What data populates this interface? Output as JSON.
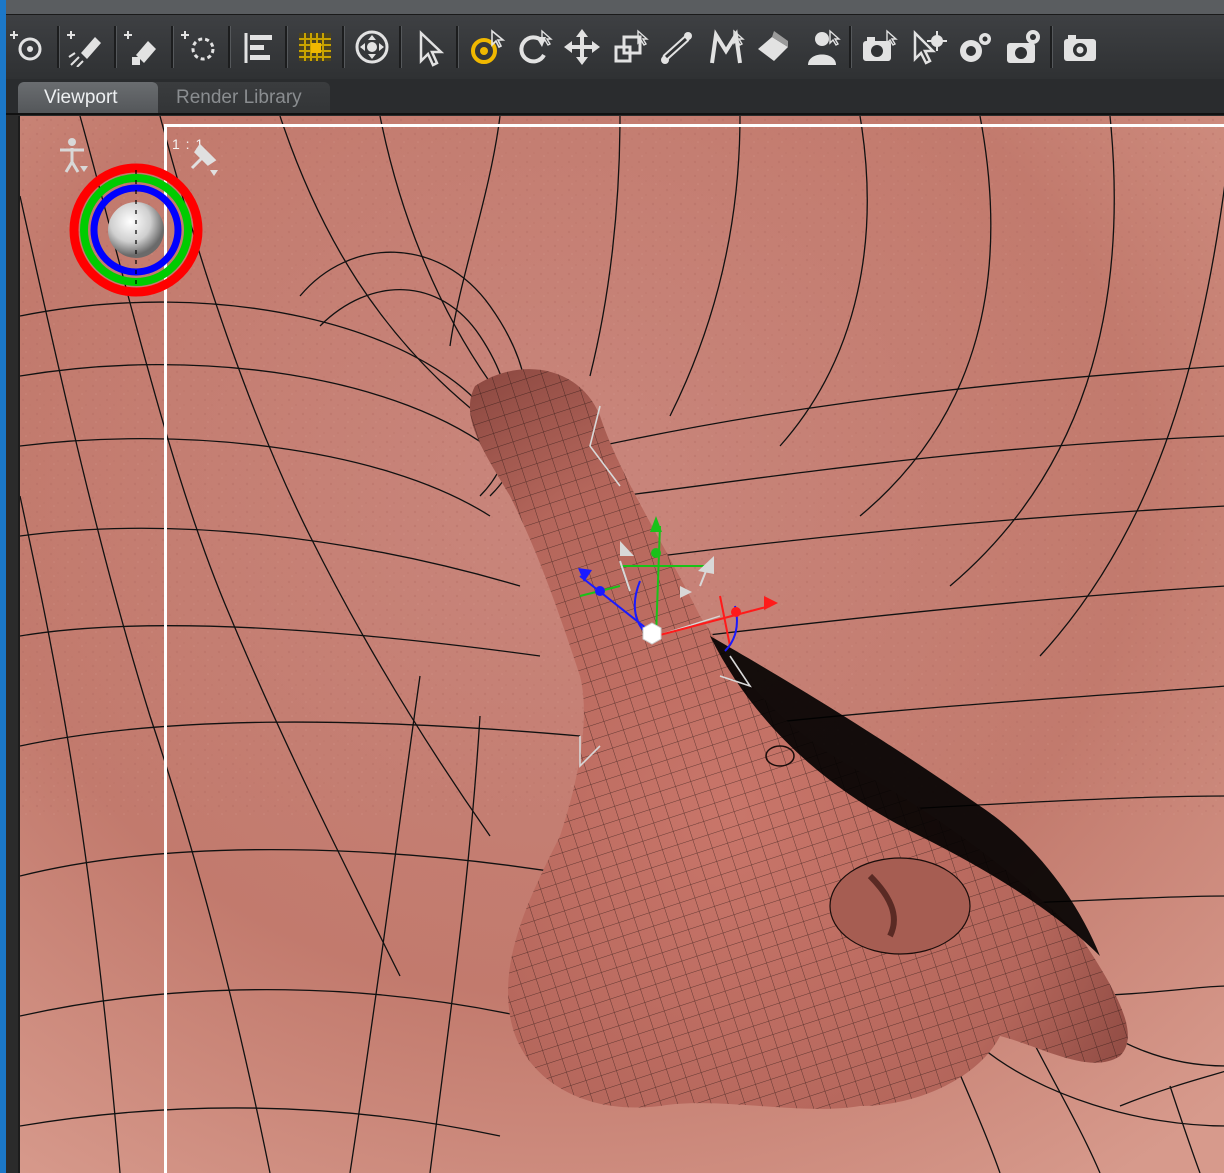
{
  "toolbar": {
    "tools": [
      {
        "name": "create-null-icon"
      },
      {
        "name": "create-spotlight-icon"
      },
      {
        "name": "create-distant-light-icon"
      },
      {
        "name": "create-point-light-icon"
      },
      {
        "name": "align-icon"
      },
      {
        "name": "grid-pattern-icon"
      },
      {
        "name": "universal-navigate-icon"
      },
      {
        "name": "node-selection-tool-icon"
      },
      {
        "name": "joint-editor-tool-icon"
      },
      {
        "name": "rotate-tool-icon"
      },
      {
        "name": "translate-tool-icon"
      },
      {
        "name": "scale-tool-icon"
      },
      {
        "name": "bone-tool-icon"
      },
      {
        "name": "morph-tool-icon"
      },
      {
        "name": "surface-selection-tool-icon"
      },
      {
        "name": "figure-tool-icon"
      },
      {
        "name": "camera-tool-icon"
      },
      {
        "name": "active-pose-tool-icon"
      },
      {
        "name": "render-settings-icon"
      },
      {
        "name": "render-camera-settings-icon"
      },
      {
        "name": "render-icon"
      }
    ],
    "accent": "#f0b800"
  },
  "tabs": {
    "viewport": "Viewport",
    "render_library": "Render Library",
    "active": "viewport"
  },
  "viewport": {
    "aspect_label": "1 : 1",
    "skin_color": "#c9857a",
    "wire_color": "#111111",
    "camera_control": {
      "ring_outer": "#ff0000",
      "ring_middle": "#00cc00",
      "ring_inner": "#0000ff"
    },
    "gizmo": {
      "x_color": "#ff1a1a",
      "y_color": "#19c219",
      "z_color": "#1a1aff"
    }
  }
}
